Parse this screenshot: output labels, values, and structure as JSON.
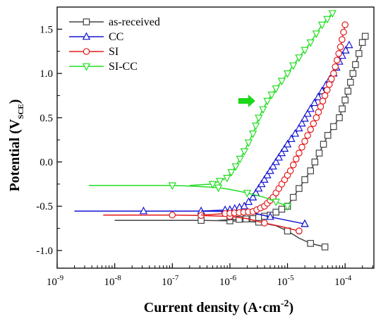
{
  "chart_data": {
    "type": "line",
    "title": "",
    "x_scale": "log",
    "xlim_exponent": [
      -9,
      -3.5
    ],
    "ylim": [
      -1.2,
      1.75
    ],
    "grid": false,
    "legend_position": "top-left",
    "xlabel": {
      "main": "Current density (A·cm",
      "sup": "-2",
      "close": ")"
    },
    "ylabel": {
      "main": "Potential (V",
      "sub": "SCE",
      "close": ")"
    },
    "x_ticks": [
      {
        "base": "10",
        "exp": "-9",
        "value": -9
      },
      {
        "base": "10",
        "exp": "-8",
        "value": -8
      },
      {
        "base": "10",
        "exp": "-7",
        "value": -7
      },
      {
        "base": "10",
        "exp": "-6",
        "value": -6
      },
      {
        "base": "10",
        "exp": "-5",
        "value": -5
      },
      {
        "base": "10",
        "exp": "-4",
        "value": -4
      }
    ],
    "y_ticks": [
      "-1.0",
      "-0.5",
      "0.0",
      "0.5",
      "1.0",
      "1.5"
    ],
    "annotation_arrow": {
      "label": "",
      "x_exp": -5.56,
      "y": 0.69,
      "color": "#1bd81b"
    },
    "series": [
      {
        "name": "as-received",
        "color": "#444444",
        "marker": "square",
        "cathodic": [
          [
            -8,
            -0.66
          ],
          [
            -7,
            -0.66
          ],
          [
            -6.5,
            -0.66
          ],
          [
            -6,
            -0.665
          ],
          [
            -5.5,
            -0.68
          ],
          [
            -5.2,
            -0.72
          ],
          [
            -5,
            -0.78
          ],
          [
            -4.8,
            -0.86
          ],
          [
            -4.6,
            -0.92
          ],
          [
            -4.35,
            -0.96
          ]
        ],
        "anodic": [
          [
            -6.2,
            -0.66
          ],
          [
            -5.6,
            -0.64
          ],
          [
            -5.3,
            -0.6
          ],
          [
            -5,
            -0.5
          ],
          [
            -4.8,
            -0.3
          ],
          [
            -4.6,
            -0.1
          ],
          [
            -4.45,
            0.1
          ],
          [
            -4.3,
            0.3
          ],
          [
            -4.1,
            0.5
          ],
          [
            -3.95,
            0.8
          ],
          [
            -3.82,
            1.1
          ],
          [
            -3.7,
            1.35
          ],
          [
            -3.65,
            1.42
          ]
        ],
        "marker_step": 0.065
      },
      {
        "name": "CC",
        "color": "#1414d2",
        "marker": "triangle-up",
        "cathodic": [
          [
            -8.7,
            -0.555
          ],
          [
            -8,
            -0.555
          ],
          [
            -7,
            -0.555
          ],
          [
            -6.5,
            -0.555
          ],
          [
            -6,
            -0.56
          ],
          [
            -5.6,
            -0.575
          ],
          [
            -5.3,
            -0.62
          ],
          [
            -5,
            -0.66
          ],
          [
            -4.7,
            -0.7
          ]
        ],
        "anodic": [
          [
            -6.5,
            -0.555
          ],
          [
            -6,
            -0.54
          ],
          [
            -5.75,
            -0.5
          ],
          [
            -5.6,
            -0.4
          ],
          [
            -5.45,
            -0.25
          ],
          [
            -5.3,
            -0.1
          ],
          [
            -5.15,
            0.05
          ],
          [
            -5,
            0.2
          ],
          [
            -4.8,
            0.38
          ],
          [
            -4.6,
            0.6
          ],
          [
            -4.4,
            0.8
          ],
          [
            -4.2,
            1.0
          ],
          [
            -4.05,
            1.2
          ],
          [
            -3.93,
            1.32
          ]
        ],
        "marker_step": 0.045
      },
      {
        "name": "SI",
        "color": "#e41a1c",
        "marker": "circle",
        "cathodic": [
          [
            -8.2,
            -0.6
          ],
          [
            -7.5,
            -0.6
          ],
          [
            -7,
            -0.6
          ],
          [
            -6.5,
            -0.605
          ],
          [
            -6,
            -0.615
          ],
          [
            -5.7,
            -0.64
          ],
          [
            -5.4,
            -0.69
          ],
          [
            -5.1,
            -0.73
          ],
          [
            -4.8,
            -0.78
          ]
        ],
        "anodic": [
          [
            -6.5,
            -0.6
          ],
          [
            -6,
            -0.58
          ],
          [
            -5.6,
            -0.56
          ],
          [
            -5.4,
            -0.5
          ],
          [
            -5.25,
            -0.4
          ],
          [
            -5.1,
            -0.25
          ],
          [
            -4.95,
            -0.1
          ],
          [
            -4.8,
            0.1
          ],
          [
            -4.65,
            0.3
          ],
          [
            -4.5,
            0.5
          ],
          [
            -4.35,
            0.75
          ],
          [
            -4.2,
            1.0
          ],
          [
            -4.08,
            1.3
          ],
          [
            -4.0,
            1.55
          ]
        ],
        "marker_step": 0.04
      },
      {
        "name": "SI-CC",
        "color": "#22dd22",
        "marker": "triangle-down",
        "cathodic": [
          [
            -8.45,
            -0.265
          ],
          [
            -8,
            -0.265
          ],
          [
            -7.5,
            -0.265
          ],
          [
            -7,
            -0.265
          ],
          [
            -6.6,
            -0.275
          ],
          [
            -6.2,
            -0.29
          ],
          [
            -6,
            -0.31
          ],
          [
            -5.7,
            -0.35
          ],
          [
            -5.4,
            -0.4
          ],
          [
            -5.2,
            -0.45
          ],
          [
            -5,
            -0.5
          ]
        ],
        "anodic": [
          [
            -6.7,
            -0.265
          ],
          [
            -6.3,
            -0.25
          ],
          [
            -6.05,
            -0.18
          ],
          [
            -5.9,
            -0.05
          ],
          [
            -5.75,
            0.12
          ],
          [
            -5.6,
            0.32
          ],
          [
            -5.5,
            0.5
          ],
          [
            -5.35,
            0.69
          ],
          [
            -5.2,
            0.83
          ],
          [
            -5,
            1.0
          ],
          [
            -4.8,
            1.18
          ],
          [
            -4.6,
            1.35
          ],
          [
            -4.4,
            1.55
          ],
          [
            -4.22,
            1.68
          ]
        ],
        "marker_step": 0.065
      }
    ]
  }
}
